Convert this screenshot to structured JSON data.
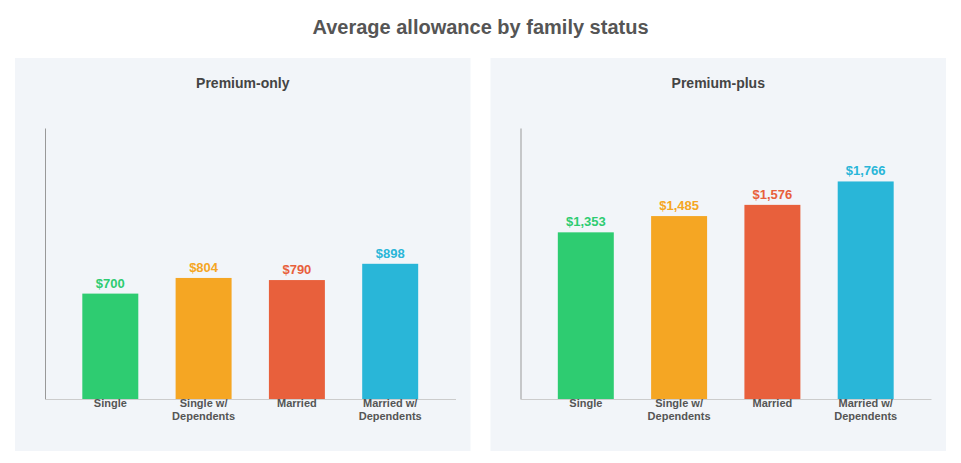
{
  "title": "Average allowance by family status",
  "chart_data": [
    {
      "type": "bar",
      "title": "Premium-only",
      "categories": [
        "Single",
        "Single w/\nDependents",
        "Married",
        "Married w/\nDependents"
      ],
      "values": [
        700,
        804,
        790,
        898
      ],
      "value_labels": [
        "$700",
        "$804",
        "$790",
        "$898"
      ],
      "colors": [
        "#2ecc71",
        "#f5a623",
        "#e8603c",
        "#29b6d8"
      ],
      "ylim": [
        0,
        1800
      ],
      "data_labels": true,
      "tick_labels": "x"
    },
    {
      "type": "bar",
      "title": "Premium-plus",
      "categories": [
        "Single",
        "Single w/\nDependents",
        "Married",
        "Married w/\nDependents"
      ],
      "values": [
        1353,
        1485,
        1576,
        1766
      ],
      "value_labels": [
        "$1,353",
        "$1,485",
        "$1,576",
        "$1,766"
      ],
      "colors": [
        "#2ecc71",
        "#f5a623",
        "#e8603c",
        "#29b6d8"
      ],
      "ylim": [
        0,
        2200
      ],
      "data_labels": true,
      "tick_labels": "x"
    }
  ]
}
